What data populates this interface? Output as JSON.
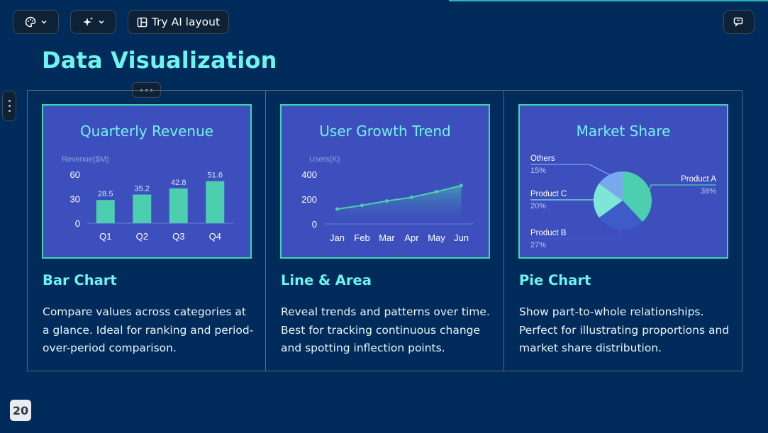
{
  "toolbar": {
    "theme_icon": "palette-icon",
    "ai_icon": "sparkles-icon",
    "try_ai_label": "Try AI layout",
    "layout_icon": "layout-icon",
    "comment_icon": "comment-icon"
  },
  "page": {
    "title": "Data Visualization",
    "slide_number": "20"
  },
  "colors": {
    "background": "#012b5b",
    "accent": "#6ef4ee",
    "chart_bg": "#3d4fbd",
    "chart_border": "#3dd7ae",
    "bar_fill": "#4ccfae"
  },
  "cards": [
    {
      "heading": "Bar Chart",
      "description": "Compare values across categories at a glance. Ideal for ranking and period-over-period comparison."
    },
    {
      "heading": "Line & Area",
      "description": "Reveal trends and patterns over time. Best for tracking continuous change and spotting inflection points."
    },
    {
      "heading": "Pie Chart",
      "description": "Show part-to-whole relationships. Perfect for illustrating proportions and market share distribution."
    }
  ],
  "chart_data": [
    {
      "type": "bar",
      "title": "Quarterly Revenue",
      "ylabel": "Revenue($M)",
      "categories": [
        "Q1",
        "Q2",
        "Q3",
        "Q4"
      ],
      "values": [
        28.5,
        35.2,
        42.8,
        51.6
      ],
      "yticks": [
        0,
        30,
        60
      ],
      "ylim": [
        0,
        60
      ],
      "data_labels": true,
      "grid": false
    },
    {
      "type": "area",
      "title": "User Growth Trend",
      "ylabel": "Users(K)",
      "categories": [
        "Jan",
        "Feb",
        "Mar",
        "Apr",
        "May",
        "Jun"
      ],
      "values": [
        120,
        150,
        185,
        215,
        260,
        310
      ],
      "yticks": [
        0,
        200,
        400
      ],
      "ylim": [
        0,
        400
      ],
      "grid": false
    },
    {
      "type": "pie",
      "title": "Market Share",
      "slices": [
        {
          "label": "Product A",
          "pct_label": "38%",
          "value": 38,
          "color": "#4ccfae"
        },
        {
          "label": "Product B",
          "pct_label": "27%",
          "value": 27,
          "color": "#3d5cc9"
        },
        {
          "label": "Product C",
          "pct_label": "20%",
          "value": 20,
          "color": "#7ee6d6"
        },
        {
          "label": "Others",
          "pct_label": "15%",
          "value": 15,
          "color": "#7aa8ee"
        }
      ]
    }
  ]
}
